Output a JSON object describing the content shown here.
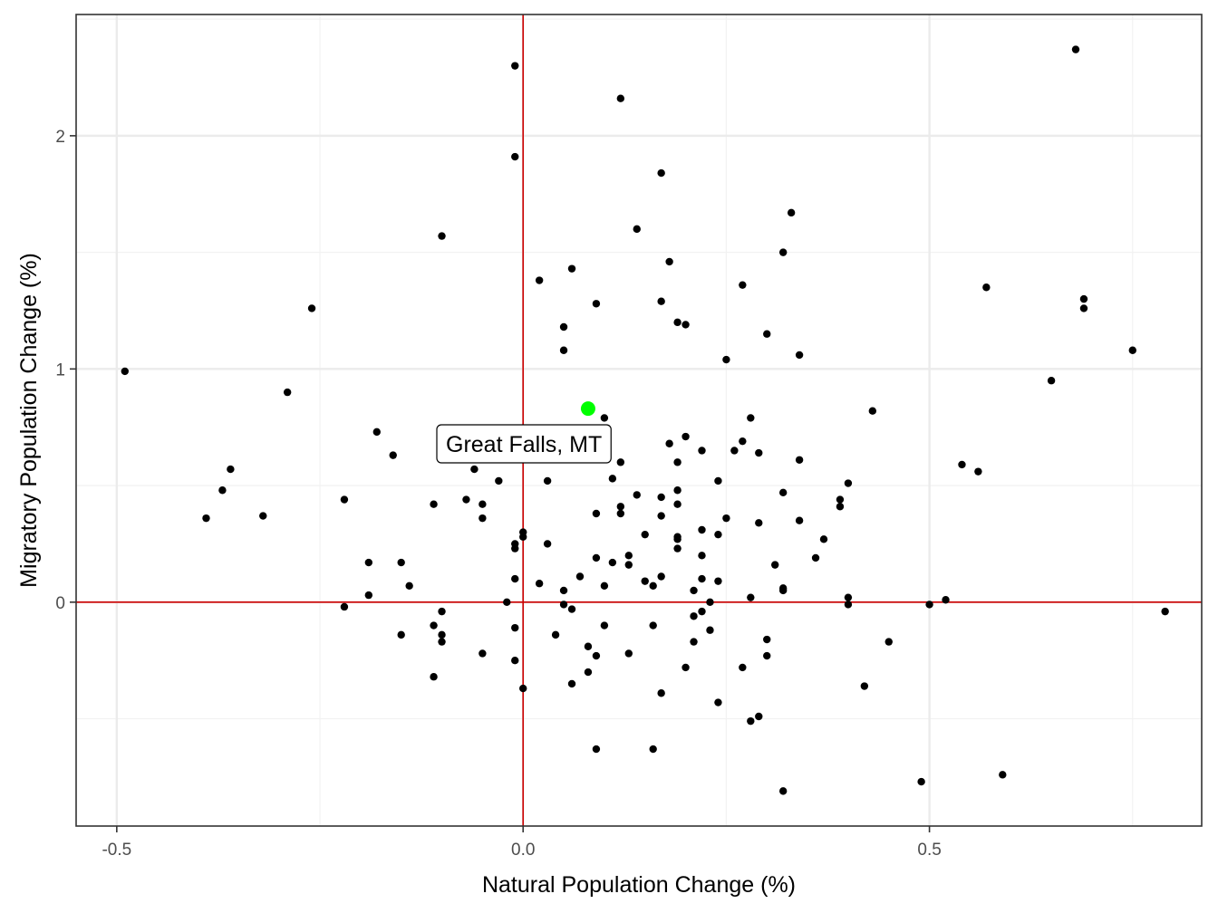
{
  "chart_data": {
    "type": "scatter",
    "title": "",
    "xlabel": "Natural Population Change (%)",
    "ylabel": "Migratory Population Change (%)",
    "xlim": [
      -0.55,
      0.835
    ],
    "ylim": [
      -0.96,
      2.52
    ],
    "x_ticks": [
      -0.5,
      0.0,
      0.5
    ],
    "x_tick_labels": [
      "-0.5",
      "0.0",
      "0.5"
    ],
    "y_ticks": [
      0,
      1,
      2
    ],
    "y_tick_labels": [
      "0",
      "1",
      "2"
    ],
    "grid": true,
    "reference_lines": {
      "x": 0,
      "y": 0,
      "color": "#cc0000"
    },
    "highlight": {
      "label": "Great Falls, MT",
      "x": 0.08,
      "y": 0.83,
      "color": "#00ff00"
    },
    "points": [
      [
        -0.49,
        0.99
      ],
      [
        -0.39,
        0.36
      ],
      [
        -0.37,
        0.48
      ],
      [
        -0.36,
        0.57
      ],
      [
        -0.32,
        0.37
      ],
      [
        -0.29,
        0.9
      ],
      [
        -0.26,
        1.26
      ],
      [
        -0.22,
        0.44
      ],
      [
        -0.22,
        -0.02
      ],
      [
        -0.19,
        0.17
      ],
      [
        -0.19,
        0.03
      ],
      [
        -0.18,
        0.73
      ],
      [
        -0.16,
        0.63
      ],
      [
        -0.15,
        0.17
      ],
      [
        -0.15,
        -0.14
      ],
      [
        -0.14,
        0.07
      ],
      [
        -0.11,
        0.42
      ],
      [
        -0.11,
        -0.1
      ],
      [
        -0.11,
        -0.32
      ],
      [
        -0.1,
        1.57
      ],
      [
        -0.1,
        -0.04
      ],
      [
        -0.1,
        -0.14
      ],
      [
        -0.1,
        -0.17
      ],
      [
        -0.07,
        0.44
      ],
      [
        -0.06,
        0.57
      ],
      [
        -0.05,
        0.42
      ],
      [
        -0.05,
        0.36
      ],
      [
        -0.05,
        -0.22
      ],
      [
        -0.03,
        0.52
      ],
      [
        -0.02,
        0.0
      ],
      [
        -0.01,
        2.3
      ],
      [
        -0.01,
        1.91
      ],
      [
        -0.01,
        0.25
      ],
      [
        -0.01,
        0.23
      ],
      [
        -0.01,
        0.1
      ],
      [
        -0.01,
        -0.11
      ],
      [
        -0.01,
        -0.25
      ],
      [
        0.0,
        0.3
      ],
      [
        0.0,
        0.28
      ],
      [
        0.0,
        -0.37
      ],
      [
        0.02,
        1.38
      ],
      [
        0.02,
        0.08
      ],
      [
        0.03,
        0.52
      ],
      [
        0.03,
        0.25
      ],
      [
        0.04,
        -0.14
      ],
      [
        0.05,
        1.18
      ],
      [
        0.05,
        1.08
      ],
      [
        0.05,
        0.05
      ],
      [
        0.05,
        -0.01
      ],
      [
        0.06,
        1.43
      ],
      [
        0.06,
        -0.03
      ],
      [
        0.06,
        -0.35
      ],
      [
        0.07,
        0.11
      ],
      [
        0.08,
        -0.19
      ],
      [
        0.08,
        -0.3
      ],
      [
        0.09,
        1.28
      ],
      [
        0.09,
        0.38
      ],
      [
        0.09,
        0.19
      ],
      [
        0.09,
        -0.23
      ],
      [
        0.09,
        -0.63
      ],
      [
        0.1,
        0.79
      ],
      [
        0.1,
        0.07
      ],
      [
        0.1,
        -0.1
      ],
      [
        0.11,
        0.53
      ],
      [
        0.11,
        0.17
      ],
      [
        0.12,
        2.16
      ],
      [
        0.12,
        0.6
      ],
      [
        0.12,
        0.41
      ],
      [
        0.12,
        0.38
      ],
      [
        0.13,
        0.2
      ],
      [
        0.13,
        0.16
      ],
      [
        0.13,
        -0.22
      ],
      [
        0.14,
        1.6
      ],
      [
        0.14,
        0.46
      ],
      [
        0.15,
        0.29
      ],
      [
        0.15,
        0.09
      ],
      [
        0.16,
        0.07
      ],
      [
        0.16,
        -0.1
      ],
      [
        0.16,
        -0.63
      ],
      [
        0.17,
        1.84
      ],
      [
        0.17,
        1.29
      ],
      [
        0.17,
        0.45
      ],
      [
        0.17,
        0.37
      ],
      [
        0.17,
        0.11
      ],
      [
        0.17,
        -0.39
      ],
      [
        0.18,
        1.46
      ],
      [
        0.18,
        0.68
      ],
      [
        0.19,
        1.2
      ],
      [
        0.19,
        0.6
      ],
      [
        0.19,
        0.48
      ],
      [
        0.19,
        0.42
      ],
      [
        0.19,
        0.28
      ],
      [
        0.19,
        0.27
      ],
      [
        0.19,
        0.23
      ],
      [
        0.2,
        1.19
      ],
      [
        0.2,
        0.71
      ],
      [
        0.2,
        -0.28
      ],
      [
        0.21,
        0.05
      ],
      [
        0.21,
        -0.06
      ],
      [
        0.21,
        -0.17
      ],
      [
        0.22,
        0.65
      ],
      [
        0.22,
        0.31
      ],
      [
        0.22,
        0.2
      ],
      [
        0.22,
        0.1
      ],
      [
        0.22,
        -0.04
      ],
      [
        0.23,
        0.0
      ],
      [
        0.23,
        -0.12
      ],
      [
        0.24,
        0.52
      ],
      [
        0.24,
        0.29
      ],
      [
        0.24,
        0.09
      ],
      [
        0.24,
        -0.43
      ],
      [
        0.25,
        1.04
      ],
      [
        0.25,
        0.36
      ],
      [
        0.26,
        0.65
      ],
      [
        0.27,
        1.36
      ],
      [
        0.27,
        0.69
      ],
      [
        0.27,
        -0.28
      ],
      [
        0.28,
        0.79
      ],
      [
        0.28,
        0.02
      ],
      [
        0.28,
        -0.51
      ],
      [
        0.29,
        0.64
      ],
      [
        0.29,
        0.34
      ],
      [
        0.29,
        -0.49
      ],
      [
        0.3,
        1.15
      ],
      [
        0.3,
        -0.16
      ],
      [
        0.3,
        -0.23
      ],
      [
        0.31,
        0.16
      ],
      [
        0.32,
        1.5
      ],
      [
        0.32,
        0.47
      ],
      [
        0.32,
        0.06
      ],
      [
        0.32,
        0.05
      ],
      [
        0.32,
        -0.81
      ],
      [
        0.33,
        1.67
      ],
      [
        0.34,
        1.06
      ],
      [
        0.34,
        0.61
      ],
      [
        0.34,
        0.35
      ],
      [
        0.36,
        0.19
      ],
      [
        0.37,
        0.27
      ],
      [
        0.39,
        0.44
      ],
      [
        0.39,
        0.41
      ],
      [
        0.4,
        0.51
      ],
      [
        0.4,
        0.02
      ],
      [
        0.4,
        -0.01
      ],
      [
        0.42,
        -0.36
      ],
      [
        0.43,
        0.82
      ],
      [
        0.45,
        -0.17
      ],
      [
        0.49,
        -0.77
      ],
      [
        0.5,
        -0.01
      ],
      [
        0.52,
        0.01
      ],
      [
        0.54,
        0.59
      ],
      [
        0.56,
        0.56
      ],
      [
        0.57,
        1.35
      ],
      [
        0.59,
        -0.74
      ],
      [
        0.65,
        0.95
      ],
      [
        0.68,
        2.37
      ],
      [
        0.69,
        1.3
      ],
      [
        0.69,
        1.26
      ],
      [
        0.75,
        1.08
      ],
      [
        0.79,
        -0.04
      ]
    ]
  }
}
